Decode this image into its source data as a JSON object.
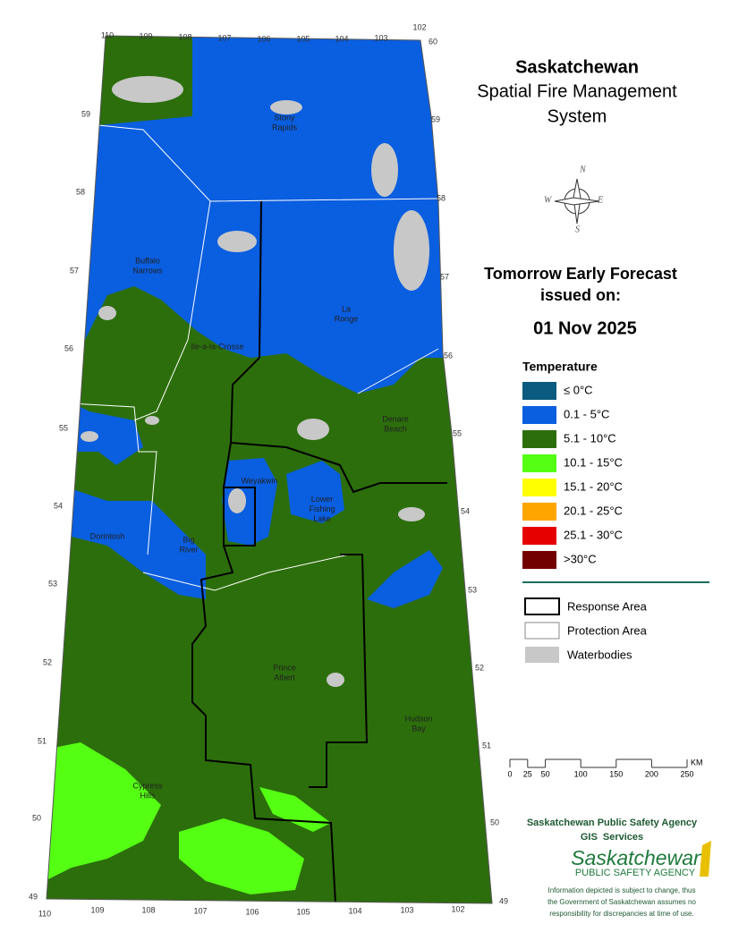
{
  "title": {
    "line1": "Saskatchewan",
    "line2": "Spatial Fire Management",
    "line3": "System"
  },
  "compass": {
    "n": "N",
    "e": "E",
    "s": "S",
    "w": "W"
  },
  "forecast": {
    "line1": "Tomorrow Early Forecast",
    "line2": "issued on:",
    "date": "01 Nov 2025"
  },
  "legend": {
    "title": "Temperature",
    "items": [
      {
        "label": "≤ 0°C",
        "color": "#0b5a80"
      },
      {
        "label": "0.1 - 5°C",
        "color": "#0a5ee0"
      },
      {
        "label": "5.1 - 10°C",
        "color": "#2c6e0c"
      },
      {
        "label": "10.1 - 15°C",
        "color": "#55ff14"
      },
      {
        "label": "15.1 - 20°C",
        "color": "#ffff00"
      },
      {
        "label": "20.1 - 25°C",
        "color": "#ffa500"
      },
      {
        "label": "25.1 - 30°C",
        "color": "#e60000"
      },
      {
        "label": ">30°C",
        "color": "#730000"
      }
    ]
  },
  "boundaries": [
    "Response Area",
    "Protection Area",
    "Waterbodies"
  ],
  "scale_bar": {
    "ticks": [
      0,
      25,
      50,
      100,
      150,
      200,
      250
    ],
    "unit": "KM"
  },
  "agency": {
    "line1": "Saskatchewan Public Safety Agency",
    "line2": "GIS  Services"
  },
  "logo": {
    "name": "Saskatchewan",
    "subtitle": "PUBLIC SAFETY AGENCY"
  },
  "disclaimer": [
    "Information depicted is subject to change, thus",
    "the Government of Saskatchewan assumes no",
    "responsibility for discrepancies at time of use."
  ],
  "map": {
    "lon_top": [
      110,
      109,
      108,
      107,
      106,
      105,
      104,
      103,
      102
    ],
    "lon_bottom": [
      110,
      109,
      108,
      107,
      106,
      105,
      104,
      103,
      102
    ],
    "lat_left": [
      59,
      58,
      57,
      56,
      55,
      54,
      53,
      52,
      51,
      50,
      49
    ],
    "lat_right": [
      60,
      59,
      58,
      57,
      56,
      55,
      54,
      53,
      52,
      51,
      50,
      49
    ],
    "places": [
      "Stony Rapids",
      "Buffalo Narrows",
      "La Ronge",
      "Ile-a-la-Crosse",
      "Denare Beach",
      "Weyakwin",
      "Lower Fishing Lake",
      "Dorintosh",
      "Big River",
      "Prince Albert",
      "Hudson Bay",
      "Cypress Hills"
    ]
  }
}
